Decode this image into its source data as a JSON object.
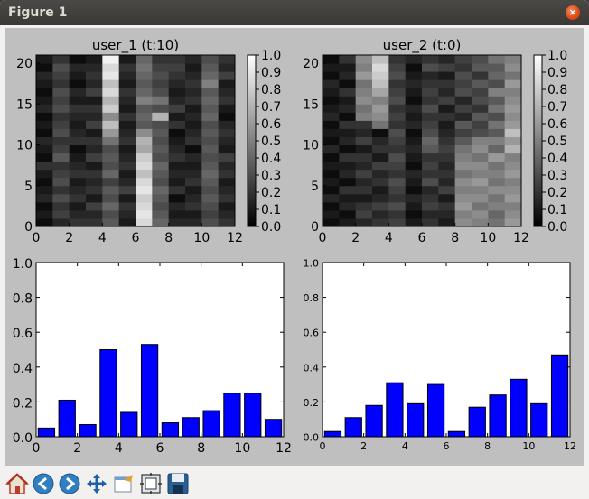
{
  "window": {
    "title": "Figure 1",
    "close_glyph": "×"
  },
  "toolbar": {
    "buttons": [
      {
        "icon": "home-icon",
        "label": "Home"
      },
      {
        "icon": "back-arrow-icon",
        "label": "Back"
      },
      {
        "icon": "forward-arrow-icon",
        "label": "Forward"
      },
      {
        "icon": "pan-arrows-icon",
        "label": "Pan"
      },
      {
        "icon": "zoom-rect-icon",
        "label": "Zoom"
      },
      {
        "icon": "subplots-icon",
        "label": "Configure subplots"
      },
      {
        "icon": "save-icon",
        "label": "Save"
      }
    ]
  },
  "chart_data": [
    {
      "type": "heatmap",
      "title": "user_1 (t:10)",
      "x_ticks": [
        0,
        2,
        4,
        6,
        8,
        10,
        12
      ],
      "y_ticks": [
        0,
        5,
        10,
        15,
        20
      ],
      "xlim": [
        0,
        12
      ],
      "ylim": [
        0,
        21
      ],
      "colormap": "gray",
      "colorbar_ticks": [
        "1.0",
        "0.9",
        "0.8",
        "0.7",
        "0.6",
        "0.5",
        "0.4",
        "0.3",
        "0.2",
        "0.1",
        "0.0"
      ],
      "values": [
        [
          0.05,
          0.15,
          0.2,
          0.2,
          0.35,
          0.1,
          0.85,
          0.4,
          0.15,
          0.15,
          0.3,
          0.2
        ],
        [
          0.1,
          0.25,
          0.15,
          0.15,
          0.3,
          0.15,
          0.9,
          0.35,
          0.1,
          0.1,
          0.25,
          0.15
        ],
        [
          0.05,
          0.2,
          0.1,
          0.25,
          0.4,
          0.2,
          0.85,
          0.3,
          0.15,
          0.2,
          0.3,
          0.1
        ],
        [
          0.15,
          0.3,
          0.2,
          0.1,
          0.3,
          0.1,
          0.8,
          0.35,
          0.05,
          0.15,
          0.35,
          0.2
        ],
        [
          0.1,
          0.2,
          0.15,
          0.2,
          0.35,
          0.25,
          0.9,
          0.4,
          0.2,
          0.1,
          0.3,
          0.15
        ],
        [
          0.05,
          0.3,
          0.1,
          0.15,
          0.25,
          0.15,
          0.85,
          0.3,
          0.1,
          0.2,
          0.35,
          0.1
        ],
        [
          0.1,
          0.25,
          0.2,
          0.2,
          0.4,
          0.1,
          0.75,
          0.35,
          0.15,
          0.15,
          0.4,
          0.2
        ],
        [
          0.2,
          0.2,
          0.15,
          0.1,
          0.3,
          0.2,
          0.85,
          0.4,
          0.1,
          0.1,
          0.35,
          0.15
        ],
        [
          0.05,
          0.35,
          0.1,
          0.25,
          0.35,
          0.15,
          0.8,
          0.3,
          0.2,
          0.15,
          0.3,
          0.25
        ],
        [
          0.1,
          0.25,
          0.05,
          0.15,
          0.3,
          0.1,
          0.65,
          0.35,
          0.15,
          0.05,
          0.35,
          0.1
        ],
        [
          0.15,
          0.2,
          0.2,
          0.2,
          0.45,
          0.2,
          0.7,
          0.3,
          0.1,
          0.2,
          0.3,
          0.15
        ],
        [
          0.05,
          0.3,
          0.15,
          0.1,
          0.6,
          0.15,
          0.55,
          0.35,
          0.05,
          0.15,
          0.35,
          0.2
        ],
        [
          0.1,
          0.25,
          0.1,
          0.25,
          0.75,
          0.1,
          0.35,
          0.3,
          0.2,
          0.1,
          0.3,
          0.15
        ],
        [
          0.05,
          0.2,
          0.15,
          0.15,
          0.55,
          0.2,
          0.4,
          0.7,
          0.1,
          0.15,
          0.4,
          0.05
        ],
        [
          0.15,
          0.3,
          0.2,
          0.2,
          0.8,
          0.1,
          0.35,
          0.3,
          0.25,
          0.1,
          0.35,
          0.1
        ],
        [
          0.1,
          0.25,
          0.1,
          0.1,
          0.7,
          0.15,
          0.5,
          0.45,
          0.15,
          0.2,
          0.4,
          0.2
        ],
        [
          0.05,
          0.3,
          0.15,
          0.25,
          0.85,
          0.2,
          0.4,
          0.3,
          0.1,
          0.15,
          0.35,
          0.15
        ],
        [
          0.1,
          0.2,
          0.05,
          0.15,
          0.75,
          0.1,
          0.35,
          0.25,
          0.15,
          0.2,
          0.5,
          0.1
        ],
        [
          0.15,
          0.25,
          0.1,
          0.2,
          0.9,
          0.15,
          0.4,
          0.3,
          0.2,
          0.15,
          0.4,
          0.25
        ],
        [
          0.05,
          0.3,
          0.15,
          0.15,
          0.85,
          0.2,
          0.45,
          0.25,
          0.25,
          0.1,
          0.35,
          0.15
        ],
        [
          0.1,
          0.2,
          0.05,
          0.1,
          0.95,
          0.1,
          0.4,
          0.2,
          0.2,
          0.15,
          0.3,
          0.2
        ]
      ]
    },
    {
      "type": "heatmap",
      "title": "user_2 (t:0)",
      "x_ticks": [
        0,
        2,
        4,
        6,
        8,
        10,
        12
      ],
      "y_ticks": [
        0,
        5,
        10,
        15,
        20
      ],
      "xlim": [
        0,
        12
      ],
      "ylim": [
        0,
        21
      ],
      "colormap": "gray",
      "colorbar_ticks": [
        "1.0",
        "0.9",
        "0.8",
        "0.7",
        "0.6",
        "0.5",
        "0.4",
        "0.3",
        "0.2",
        "0.1",
        "0.0"
      ],
      "values": [
        [
          0.05,
          0.1,
          0.15,
          0.2,
          0.25,
          0.1,
          0.2,
          0.1,
          0.55,
          0.5,
          0.45,
          0.6
        ],
        [
          0.1,
          0.05,
          0.25,
          0.15,
          0.2,
          0.05,
          0.15,
          0.15,
          0.5,
          0.55,
          0.4,
          0.55
        ],
        [
          0.05,
          0.15,
          0.2,
          0.25,
          0.3,
          0.1,
          0.25,
          0.2,
          0.6,
          0.45,
          0.5,
          0.5
        ],
        [
          0.15,
          0.1,
          0.1,
          0.15,
          0.2,
          0.15,
          0.2,
          0.1,
          0.55,
          0.55,
          0.45,
          0.6
        ],
        [
          0.05,
          0.2,
          0.2,
          0.1,
          0.25,
          0.05,
          0.15,
          0.25,
          0.5,
          0.5,
          0.55,
          0.55
        ],
        [
          0.1,
          0.05,
          0.15,
          0.2,
          0.3,
          0.1,
          0.3,
          0.15,
          0.55,
          0.6,
          0.45,
          0.5
        ],
        [
          0.05,
          0.15,
          0.25,
          0.15,
          0.2,
          0.15,
          0.2,
          0.2,
          0.45,
          0.5,
          0.5,
          0.6
        ],
        [
          0.1,
          0.1,
          0.15,
          0.25,
          0.25,
          0.05,
          0.25,
          0.15,
          0.55,
          0.55,
          0.45,
          0.55
        ],
        [
          0.05,
          0.2,
          0.2,
          0.1,
          0.3,
          0.1,
          0.2,
          0.2,
          0.5,
          0.45,
          0.6,
          0.5
        ],
        [
          0.15,
          0.05,
          0.1,
          0.2,
          0.2,
          0.15,
          0.35,
          0.25,
          0.45,
          0.55,
          0.4,
          0.7
        ],
        [
          0.05,
          0.15,
          0.25,
          0.15,
          0.25,
          0.1,
          0.4,
          0.2,
          0.35,
          0.5,
          0.5,
          0.6
        ],
        [
          0.1,
          0.1,
          0.15,
          0.05,
          0.3,
          0.05,
          0.3,
          0.15,
          0.25,
          0.3,
          0.35,
          0.75
        ],
        [
          0.05,
          0.2,
          0.2,
          0.45,
          0.2,
          0.15,
          0.25,
          0.1,
          0.35,
          0.25,
          0.45,
          0.6
        ],
        [
          0.15,
          0.05,
          0.5,
          0.55,
          0.25,
          0.1,
          0.2,
          0.2,
          0.15,
          0.35,
          0.3,
          0.55
        ],
        [
          0.1,
          0.15,
          0.45,
          0.6,
          0.2,
          0.15,
          0.3,
          0.1,
          0.25,
          0.2,
          0.45,
          0.6
        ],
        [
          0.05,
          0.1,
          0.55,
          0.5,
          0.3,
          0.05,
          0.2,
          0.25,
          0.15,
          0.3,
          0.35,
          0.55
        ],
        [
          0.1,
          0.2,
          0.5,
          0.65,
          0.25,
          0.1,
          0.25,
          0.15,
          0.3,
          0.25,
          0.5,
          0.5
        ],
        [
          0.15,
          0.05,
          0.45,
          0.75,
          0.2,
          0.15,
          0.2,
          0.2,
          0.25,
          0.35,
          0.3,
          0.6
        ],
        [
          0.05,
          0.15,
          0.6,
          0.8,
          0.3,
          0.1,
          0.15,
          0.1,
          0.3,
          0.2,
          0.4,
          0.45
        ],
        [
          0.1,
          0.1,
          0.5,
          0.85,
          0.25,
          0.05,
          0.3,
          0.25,
          0.2,
          0.35,
          0.35,
          0.55
        ],
        [
          0.05,
          0.2,
          0.55,
          0.75,
          0.2,
          0.15,
          0.2,
          0.15,
          0.25,
          0.3,
          0.45,
          0.5
        ]
      ]
    },
    {
      "type": "bar",
      "title": "",
      "xlim": [
        0,
        12
      ],
      "ylim": [
        0,
        1.0
      ],
      "x_ticks": [
        0,
        2,
        4,
        6,
        8,
        10,
        12
      ],
      "y_ticks": [
        "0.0",
        "0.2",
        "0.4",
        "0.6",
        "0.8",
        "1.0"
      ],
      "categories": [
        0,
        1,
        2,
        3,
        4,
        5,
        6,
        7,
        8,
        9,
        10,
        11
      ],
      "values": [
        0.05,
        0.21,
        0.07,
        0.5,
        0.14,
        0.53,
        0.08,
        0.11,
        0.15,
        0.25,
        0.25,
        0.1
      ],
      "color": "#0000ff"
    },
    {
      "type": "bar",
      "title": "",
      "xlim": [
        0,
        12
      ],
      "ylim": [
        0,
        1.0
      ],
      "x_ticks": [
        0,
        2,
        4,
        6,
        8,
        10,
        12
      ],
      "y_ticks": [
        "0.0",
        "0.2",
        "0.4",
        "0.6",
        "0.8",
        "1.0"
      ],
      "categories": [
        0,
        1,
        2,
        3,
        4,
        5,
        6,
        7,
        8,
        9,
        10,
        11
      ],
      "values": [
        0.03,
        0.11,
        0.18,
        0.31,
        0.19,
        0.3,
        0.03,
        0.17,
        0.24,
        0.33,
        0.19,
        0.47
      ],
      "color": "#0000ff"
    }
  ]
}
